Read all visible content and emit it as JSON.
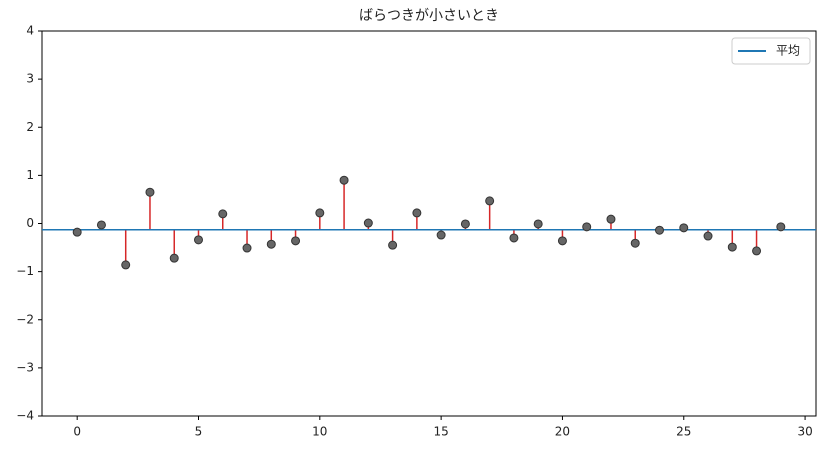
{
  "chart_data": {
    "type": "stem",
    "title": "ばらつきが小さいとき",
    "x": [
      0,
      1,
      2,
      3,
      4,
      5,
      6,
      7,
      8,
      9,
      10,
      11,
      12,
      13,
      14,
      15,
      16,
      17,
      18,
      19,
      20,
      21,
      22,
      23,
      24,
      25,
      26,
      27,
      28,
      29
    ],
    "values": [
      -0.18,
      -0.03,
      -0.86,
      0.65,
      -0.72,
      -0.34,
      0.2,
      -0.51,
      -0.43,
      -0.36,
      0.22,
      0.9,
      0.01,
      -0.45,
      0.22,
      -0.24,
      -0.01,
      0.47,
      -0.3,
      -0.01,
      -0.36,
      -0.07,
      0.09,
      -0.41,
      -0.14,
      -0.09,
      -0.26,
      -0.49,
      -0.57,
      -0.07
    ],
    "stem_color": "#d62728",
    "marker_color": "#666666",
    "baseline": {
      "name": "平均",
      "value": -0.13,
      "color": "#1f77b4"
    },
    "legend": "upper right",
    "xlim": [
      -1.45,
      30.45
    ],
    "xticks": [
      0,
      5,
      10,
      15,
      20,
      25,
      30
    ],
    "ylim": [
      -4,
      4
    ],
    "yticks": [
      {
        "value": -4,
        "label": "−4"
      },
      {
        "value": -3,
        "label": "−3"
      },
      {
        "value": -2,
        "label": "−2"
      },
      {
        "value": -1,
        "label": "−1"
      },
      0,
      1,
      2,
      3,
      4
    ]
  }
}
